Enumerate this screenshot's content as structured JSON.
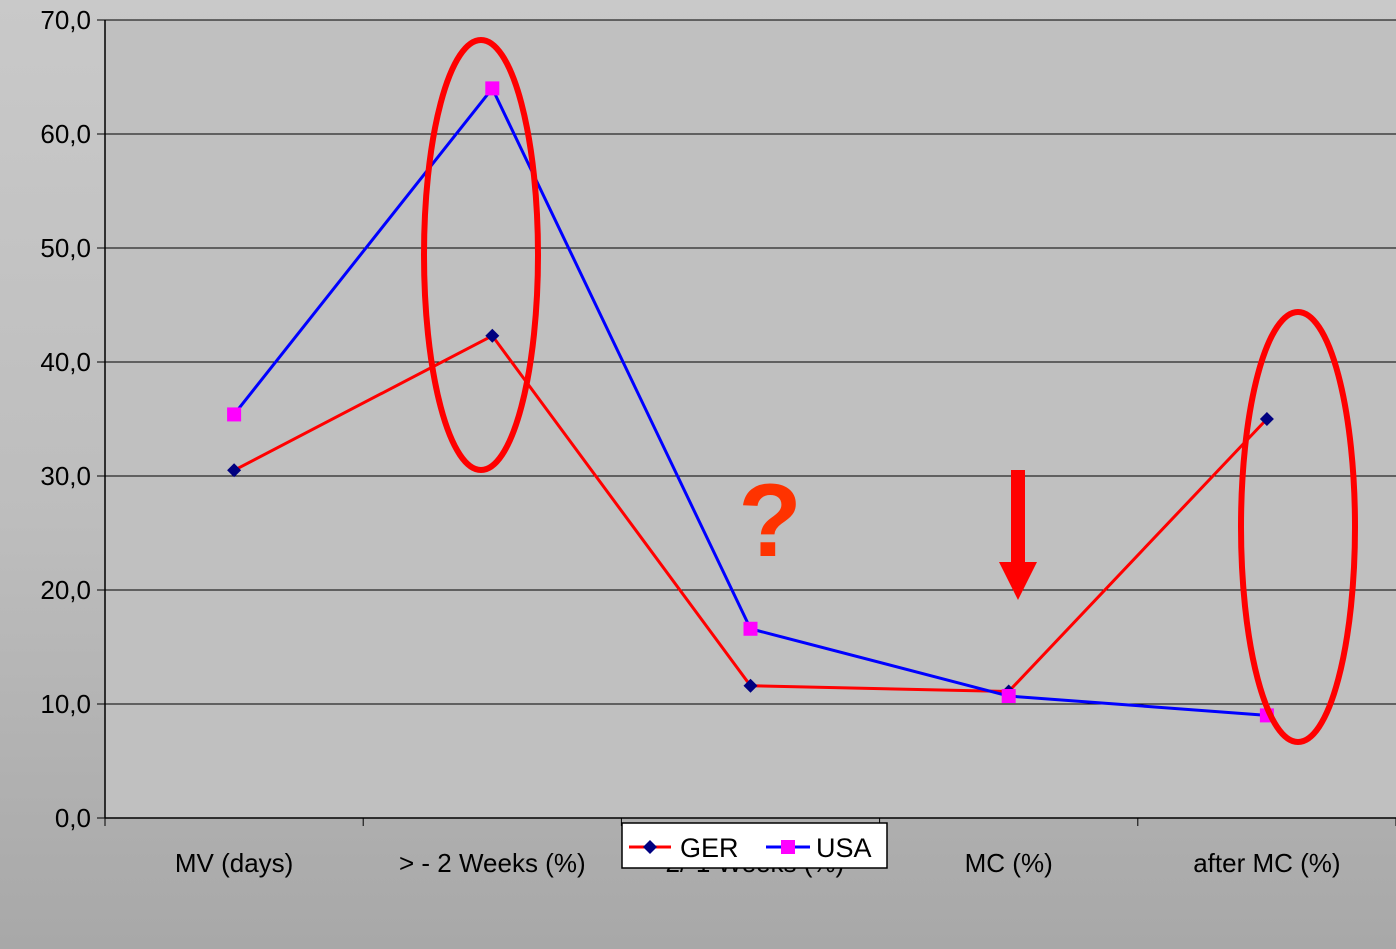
{
  "chart_data": {
    "type": "line",
    "categories": [
      "MV (days)",
      "> - 2 Weeks (%)",
      "-2/-1 Weeks (%)",
      "MC (%)",
      "after MC (%)"
    ],
    "series": [
      {
        "name": "GER",
        "values": [
          30.5,
          42.3,
          11.6,
          11.1,
          35.0
        ],
        "line_color": "#ff0000",
        "marker": "diamond",
        "marker_color": "#000080"
      },
      {
        "name": "USA",
        "values": [
          35.4,
          64.0,
          16.6,
          10.7,
          9.0
        ],
        "line_color": "#0000ff",
        "marker": "square",
        "marker_color": "#ff00ff"
      }
    ],
    "ylim": [
      0,
      70
    ],
    "yticks": [
      "0,0",
      "10,0",
      "20,0",
      "30,0",
      "40,0",
      "50,0",
      "60,0",
      "70,0"
    ],
    "ytick_values": [
      0,
      10,
      20,
      30,
      40,
      50,
      60,
      70
    ],
    "grid": true,
    "legend_position": "bottom",
    "annotations": {
      "question_mark": "?",
      "question_mark_color": "#ff3300",
      "arrow_color": "#ff0000",
      "ellipse_color": "#ff0000"
    }
  },
  "colors": {
    "plot_background": "#c0c0c0",
    "gridline": "#000000"
  }
}
